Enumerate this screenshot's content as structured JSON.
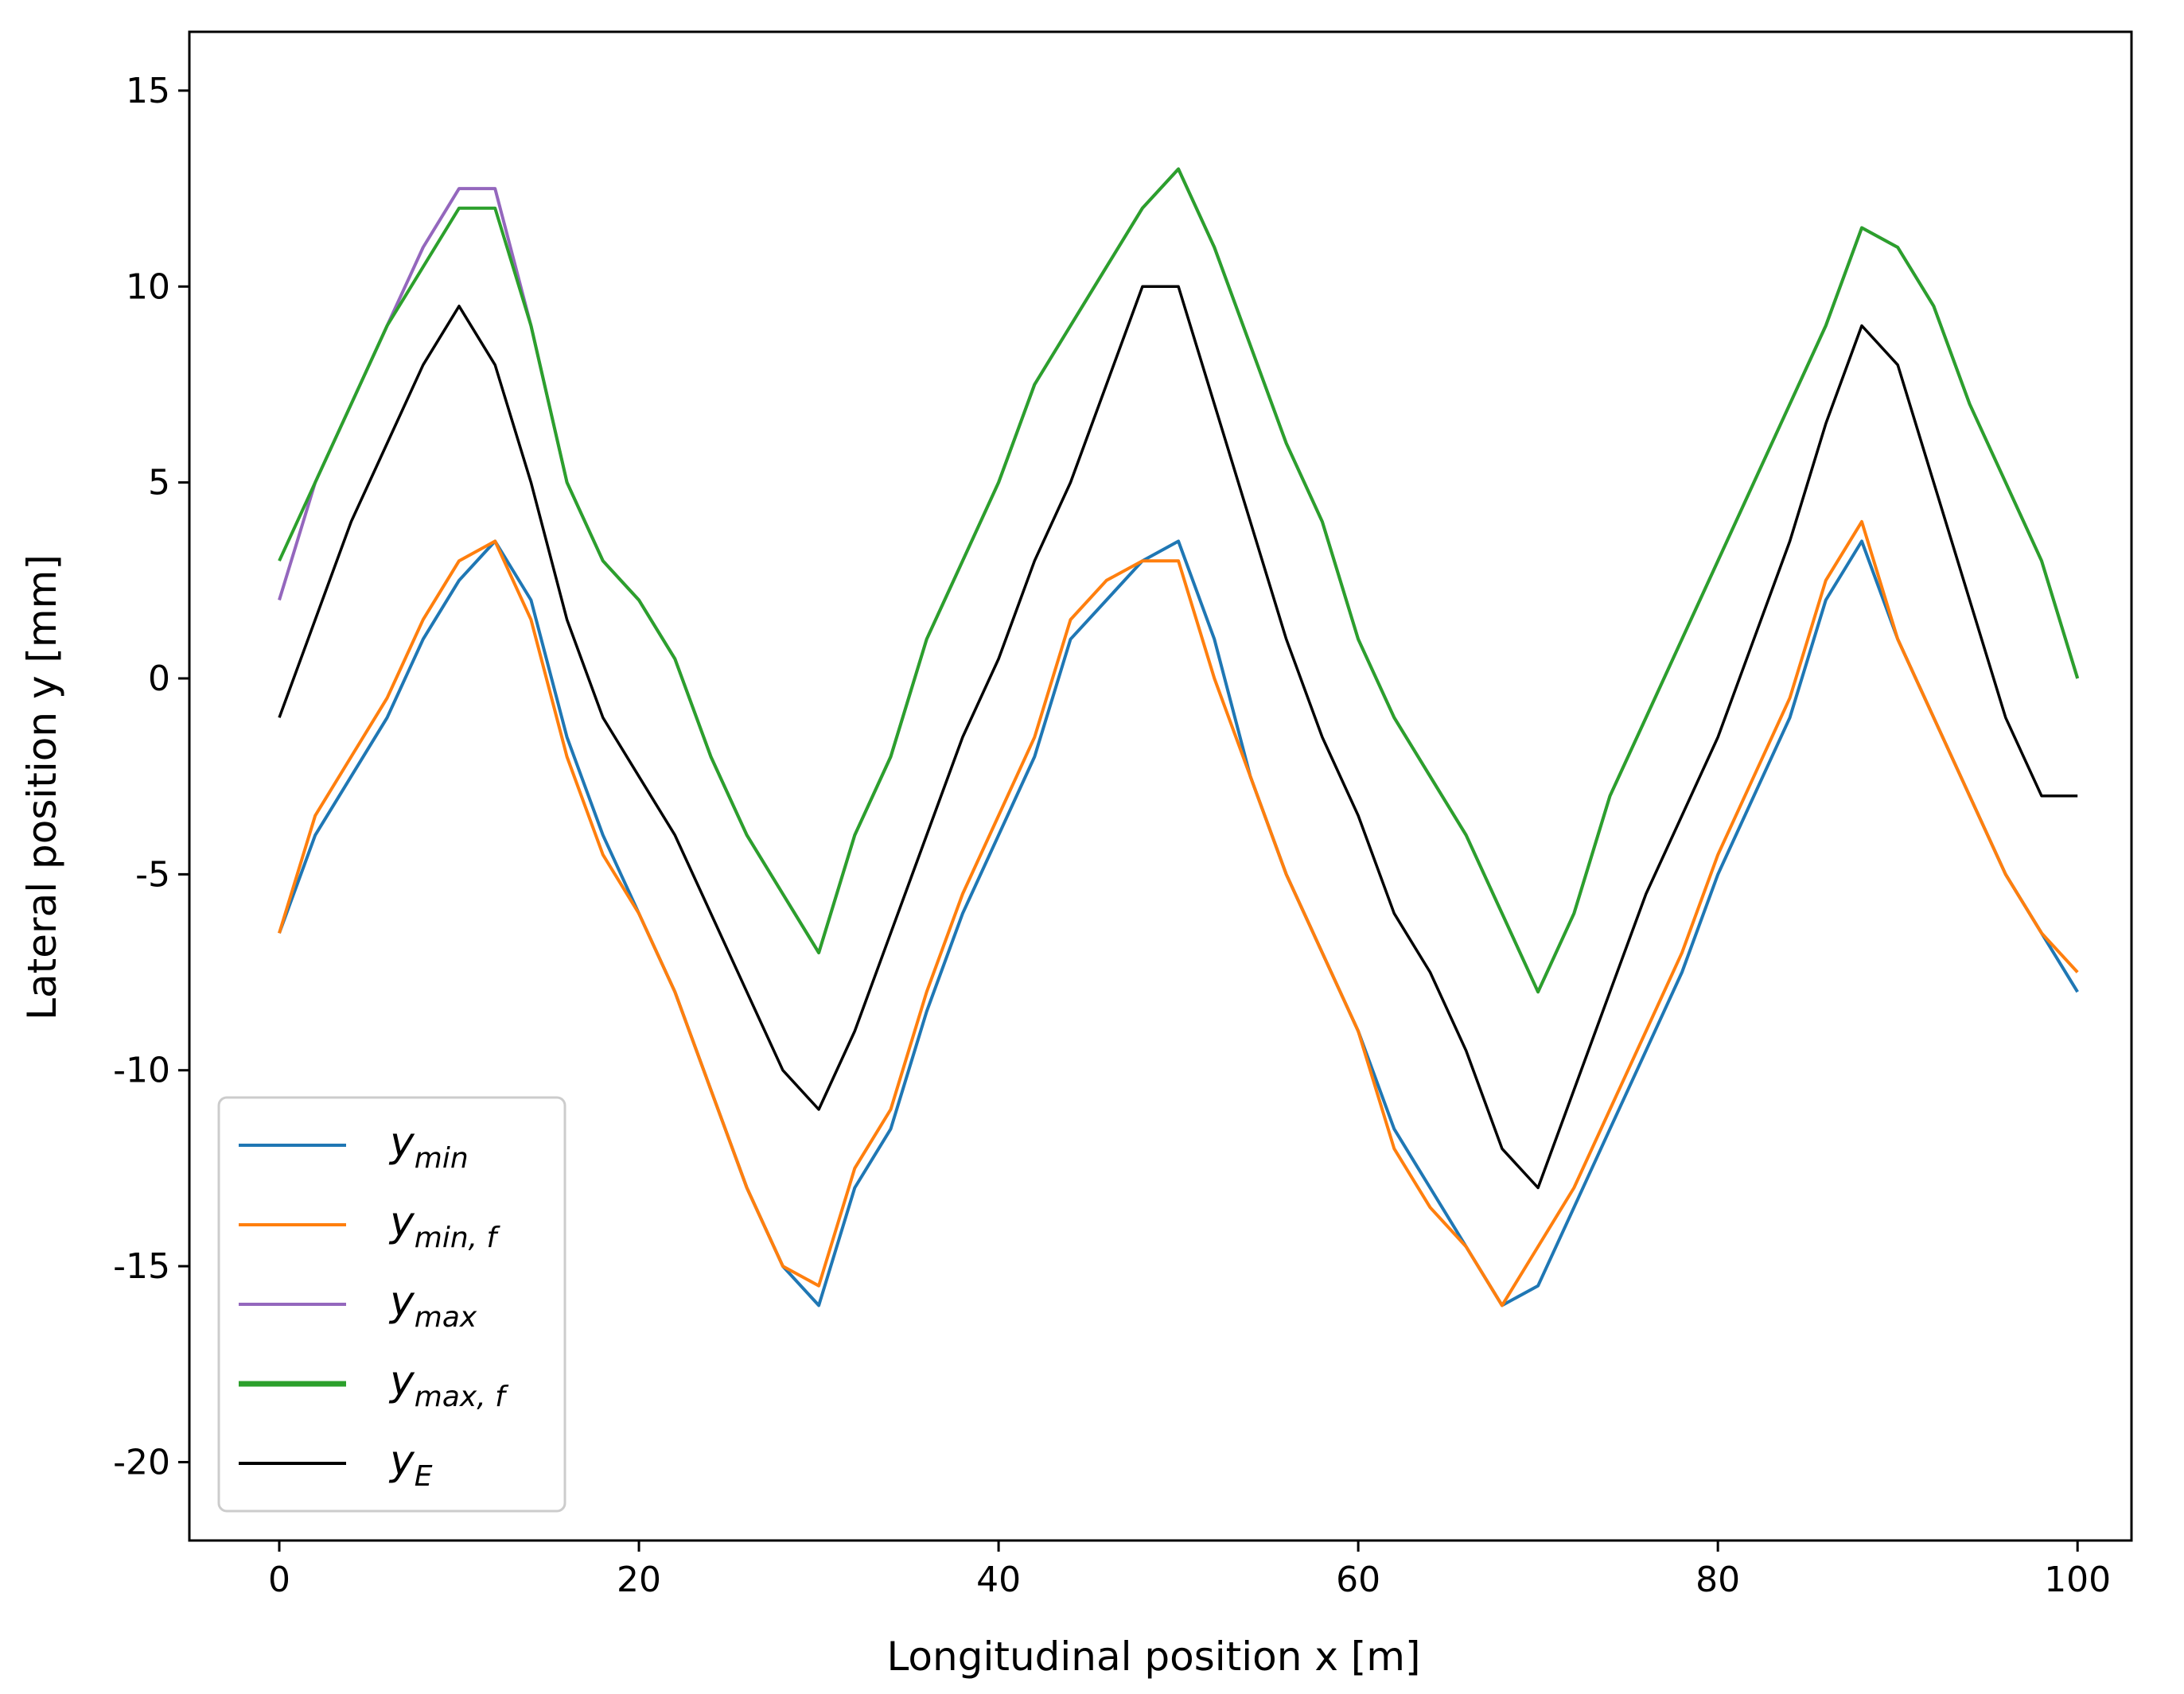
{
  "chart_data": {
    "type": "line",
    "title": "",
    "xlabel": "Longitudinal position x [m]",
    "ylabel": "Lateral position y [mm]",
    "xlim": [
      -5,
      103
    ],
    "ylim": [
      -22,
      16.5
    ],
    "grid": false,
    "legend_position": "bottom-left",
    "xticks": [
      0,
      20,
      40,
      60,
      80,
      100
    ],
    "xtick_labels": [
      "0",
      "20",
      "40",
      "60",
      "80",
      "100"
    ],
    "yticks": [
      15,
      10,
      5,
      0,
      -5,
      -10,
      -15,
      -20
    ],
    "ytick_labels": [
      "15",
      "10",
      "5",
      "0",
      "-5",
      "-10",
      "-15",
      "-20"
    ],
    "x": [
      0,
      2,
      4,
      6,
      8,
      10,
      12,
      14,
      16,
      18,
      20,
      22,
      24,
      26,
      28,
      30,
      32,
      34,
      36,
      38,
      40,
      42,
      44,
      46,
      48,
      50,
      52,
      54,
      56,
      58,
      60,
      62,
      64,
      66,
      68,
      70,
      72,
      74,
      76,
      78,
      80,
      82,
      84,
      86,
      88,
      90,
      92,
      94,
      96,
      98,
      100
    ],
    "series": [
      {
        "name": "y_min",
        "label_main": "y",
        "label_sub": "min",
        "color": "#1f77b4",
        "values": [
          -6.5,
          -4,
          -2.5,
          -1,
          1,
          2.5,
          3.5,
          2,
          -1.5,
          -4,
          -6,
          -8,
          -10.5,
          -13,
          -15,
          -16,
          -13,
          -11.5,
          -8.5,
          -6,
          -4,
          -2,
          1,
          2,
          3,
          3.5,
          1,
          -2.5,
          -5,
          -7,
          -9,
          -11.5,
          -13,
          -14.5,
          -16,
          -15.5,
          -13.5,
          -11.5,
          -9.5,
          -7.5,
          -5,
          -3,
          -1,
          2,
          3.5,
          1,
          -1,
          -3,
          -5,
          -6.5,
          -8
        ]
      },
      {
        "name": "y_min_f",
        "label_main": "y",
        "label_sub": "min, f",
        "color": "#ff7f0e",
        "values": [
          -6.5,
          -3.5,
          -2,
          -0.5,
          1.5,
          3,
          3.5,
          1.5,
          -2,
          -4.5,
          -6,
          -8,
          -10.5,
          -13,
          -15,
          -15.5,
          -12.5,
          -11,
          -8,
          -5.5,
          -3.5,
          -1.5,
          1.5,
          2.5,
          3,
          3,
          0,
          -2.5,
          -5,
          -7,
          -9,
          -12,
          -13.5,
          -14.5,
          -16,
          -14.5,
          -13,
          -11,
          -9,
          -7,
          -4.5,
          -2.5,
          -0.5,
          2.5,
          4,
          1,
          -1,
          -3,
          -5,
          -6.5,
          -7.5
        ]
      },
      {
        "name": "y_max",
        "label_main": "y",
        "label_sub": "max",
        "color": "#9467bd",
        "values": [
          2,
          5,
          7,
          9,
          11,
          12.5,
          12.5,
          9,
          5,
          3,
          2,
          0.5,
          -2,
          -4,
          -5.5,
          -7,
          -4,
          -2,
          1,
          3,
          5,
          7.5,
          9,
          10.5,
          12,
          13,
          11,
          8.5,
          6,
          4,
          1,
          -1,
          -2.5,
          -4,
          -6,
          -8,
          -6,
          -3,
          -1,
          1,
          3,
          5,
          7,
          9,
          11.5,
          11,
          9.5,
          7,
          5,
          3,
          0
        ]
      },
      {
        "name": "y_max_f",
        "label_main": "y",
        "label_sub": "max, f",
        "color": "#2ca02c",
        "values": [
          3,
          5,
          7,
          9,
          10.5,
          12,
          12,
          9,
          5,
          3,
          2,
          0.5,
          -2,
          -4,
          -5.5,
          -7,
          -4,
          -2,
          1,
          3,
          5,
          7.5,
          9,
          10.5,
          12,
          13,
          11,
          8.5,
          6,
          4,
          1,
          -1,
          -2.5,
          -4,
          -6,
          -8,
          -6,
          -3,
          -1,
          1,
          3,
          5,
          7,
          9,
          11.5,
          11,
          9.5,
          7,
          5,
          3,
          0
        ]
      },
      {
        "name": "y_E",
        "label_main": "y",
        "label_sub": "E",
        "color": "#000000",
        "values": [
          -1,
          1.5,
          4,
          6,
          8,
          9.5,
          8,
          5,
          1.5,
          -1,
          -2.5,
          -4,
          -6,
          -8,
          -10,
          -11,
          -9,
          -6.5,
          -4,
          -1.5,
          0.5,
          3,
          5,
          7.5,
          10,
          10,
          7,
          4,
          1,
          -1.5,
          -3.5,
          -6,
          -7.5,
          -9.5,
          -12,
          -13,
          -10.5,
          -8,
          -5.5,
          -3.5,
          -1.5,
          1,
          3.5,
          6.5,
          9,
          8,
          5,
          2,
          -1,
          -3,
          -3
        ]
      }
    ]
  }
}
